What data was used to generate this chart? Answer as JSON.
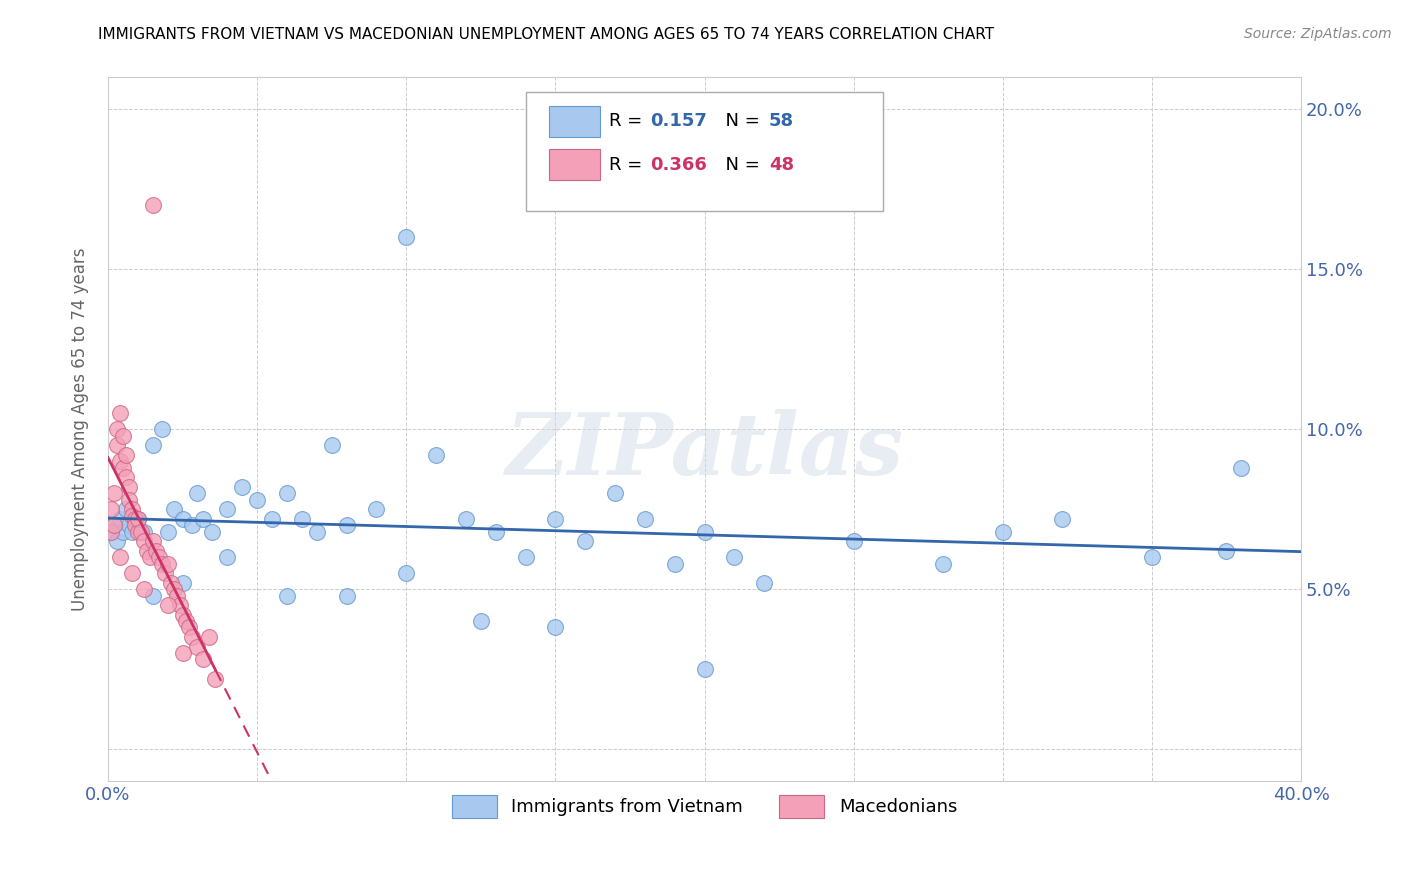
{
  "title": "IMMIGRANTS FROM VIETNAM VS MACEDONIAN UNEMPLOYMENT AMONG AGES 65 TO 74 YEARS CORRELATION CHART",
  "source": "Source: ZipAtlas.com",
  "ylabel": "Unemployment Among Ages 65 to 74 years",
  "xlim": [
    0,
    0.4
  ],
  "ylim": [
    -0.01,
    0.21
  ],
  "xticks": [
    0.0,
    0.05,
    0.1,
    0.15,
    0.2,
    0.25,
    0.3,
    0.35,
    0.4
  ],
  "xticklabels": [
    "0.0%",
    "",
    "",
    "",
    "",
    "",
    "",
    "",
    "40.0%"
  ],
  "yticks": [
    0.0,
    0.05,
    0.1,
    0.15,
    0.2
  ],
  "yticklabels": [
    "",
    "5.0%",
    "10.0%",
    "15.0%",
    "20.0%"
  ],
  "blue_color": "#a8c8f0",
  "blue_edge": "#6699cc",
  "blue_trend": "#3366aa",
  "pink_color": "#f4a0b8",
  "pink_edge": "#cc6688",
  "pink_trend": "#cc3366",
  "blue_R": 0.157,
  "blue_N": 58,
  "pink_R": 0.366,
  "pink_N": 48,
  "blue_x": [
    0.001,
    0.002,
    0.003,
    0.004,
    0.005,
    0.006,
    0.007,
    0.008,
    0.01,
    0.012,
    0.015,
    0.018,
    0.02,
    0.022,
    0.025,
    0.028,
    0.03,
    0.032,
    0.035,
    0.04,
    0.045,
    0.05,
    0.055,
    0.06,
    0.065,
    0.07,
    0.075,
    0.08,
    0.09,
    0.1,
    0.11,
    0.12,
    0.13,
    0.14,
    0.15,
    0.16,
    0.17,
    0.18,
    0.19,
    0.2,
    0.21,
    0.22,
    0.25,
    0.28,
    0.3,
    0.32,
    0.35,
    0.375,
    0.015,
    0.025,
    0.04,
    0.06,
    0.08,
    0.1,
    0.125,
    0.15,
    0.2,
    0.38
  ],
  "blue_y": [
    0.068,
    0.07,
    0.065,
    0.072,
    0.068,
    0.075,
    0.07,
    0.068,
    0.072,
    0.068,
    0.095,
    0.1,
    0.068,
    0.075,
    0.072,
    0.07,
    0.08,
    0.072,
    0.068,
    0.075,
    0.082,
    0.078,
    0.072,
    0.08,
    0.072,
    0.068,
    0.095,
    0.07,
    0.075,
    0.16,
    0.092,
    0.072,
    0.068,
    0.06,
    0.072,
    0.065,
    0.08,
    0.072,
    0.058,
    0.068,
    0.06,
    0.052,
    0.065,
    0.058,
    0.068,
    0.072,
    0.06,
    0.062,
    0.048,
    0.052,
    0.06,
    0.048,
    0.048,
    0.055,
    0.04,
    0.038,
    0.025,
    0.088
  ],
  "pink_x": [
    0.001,
    0.001,
    0.002,
    0.002,
    0.003,
    0.003,
    0.004,
    0.004,
    0.005,
    0.005,
    0.006,
    0.006,
    0.007,
    0.007,
    0.008,
    0.008,
    0.009,
    0.009,
    0.01,
    0.01,
    0.011,
    0.012,
    0.013,
    0.014,
    0.015,
    0.016,
    0.017,
    0.018,
    0.019,
    0.02,
    0.021,
    0.022,
    0.023,
    0.024,
    0.025,
    0.026,
    0.027,
    0.028,
    0.03,
    0.032,
    0.034,
    0.036,
    0.015,
    0.02,
    0.008,
    0.012,
    0.004,
    0.025
  ],
  "pink_y": [
    0.068,
    0.075,
    0.07,
    0.08,
    0.095,
    0.1,
    0.09,
    0.105,
    0.098,
    0.088,
    0.092,
    0.085,
    0.082,
    0.078,
    0.075,
    0.073,
    0.072,
    0.07,
    0.068,
    0.072,
    0.068,
    0.065,
    0.062,
    0.06,
    0.065,
    0.062,
    0.06,
    0.058,
    0.055,
    0.058,
    0.052,
    0.05,
    0.048,
    0.045,
    0.042,
    0.04,
    0.038,
    0.035,
    0.032,
    0.028,
    0.035,
    0.022,
    0.17,
    0.045,
    0.055,
    0.05,
    0.06,
    0.03
  ],
  "watermark_text": "ZIPatlas",
  "background_color": "#ffffff",
  "grid_color": "#cccccc"
}
